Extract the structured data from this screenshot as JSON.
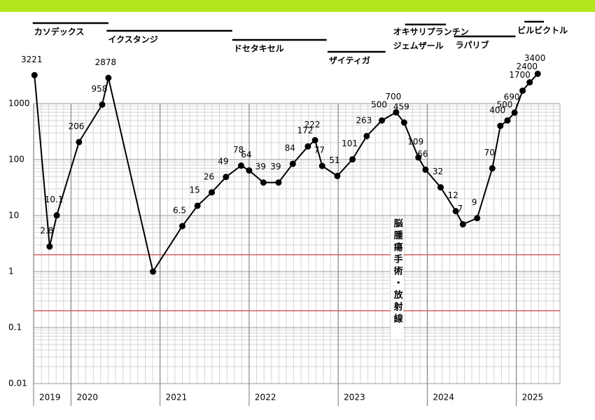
{
  "chart_data": {
    "type": "line",
    "log_scale": true,
    "grid": true,
    "color": "#000000",
    "x": [
      2019.59,
      2019.76,
      2019.84,
      2020.09,
      2020.35,
      2020.42,
      2020.92,
      2021.25,
      2021.42,
      2021.58,
      2021.74,
      2021.91,
      2022.0,
      2022.16,
      2022.33,
      2022.49,
      2022.66,
      2022.74,
      2022.82,
      2022.99,
      2023.16,
      2023.32,
      2023.49,
      2023.65,
      2023.74,
      2023.9,
      2023.98,
      2024.15,
      2024.32,
      2024.4,
      2024.56,
      2024.73,
      2024.82,
      2024.9,
      2024.98,
      2025.07,
      2025.15,
      2025.24
    ],
    "values": [
      3221,
      2.8,
      10.1,
      206,
      958,
      2878,
      1,
      6.5,
      15,
      26,
      49,
      78,
      64,
      39,
      39,
      84,
      172,
      222,
      77,
      51,
      101,
      263,
      500,
      700,
      459,
      109,
      66,
      32,
      12,
      7,
      9,
      70,
      400,
      500,
      690,
      1700,
      2400,
      3400
    ],
    "value_labels": [
      "3221",
      "2.8",
      "10.1",
      "206",
      "958",
      "2878",
      null,
      "6.5",
      "15",
      "26",
      "49",
      "78",
      "64",
      "39",
      "39",
      "84",
      "172",
      "222",
      "77",
      "51",
      "101",
      "263",
      "500",
      "700",
      "459",
      "109",
      "66",
      "32",
      "12",
      "7",
      "9",
      "70",
      "400",
      "500",
      "690",
      "1700",
      "2400",
      "3400"
    ],
    "xlim": [
      2019.58,
      2025.49
    ],
    "xticks": [
      {
        "value": 2019.58,
        "label": "2019"
      },
      2020,
      2021,
      2022,
      2023,
      2024,
      2025
    ],
    "ylim": [
      0.01,
      1000
    ],
    "yticks": [
      1000,
      100,
      10,
      1,
      0.1,
      0.01
    ],
    "reference_lines": [
      2,
      0.2
    ],
    "reference_color": "#d03030",
    "treatments": [
      {
        "label": "カソデックス",
        "start": 2019.57,
        "end": 2020.42
      },
      {
        "label": "イクスタンジ",
        "start": 2020.4,
        "end": 2021.81
      },
      {
        "label": "ドセタキセル",
        "start": 2021.81,
        "end": 2022.87
      },
      {
        "label": "ザイティガ",
        "start": 2022.88,
        "end": 2023.53
      },
      {
        "label": "オキサリプランチン",
        "label2": "ジェムザール",
        "start": 2023.75,
        "end": 2024.21
      },
      {
        "label": "ラパリブ",
        "start": 2024.3,
        "end": 2024.99
      },
      {
        "label": "ビルビクトル",
        "start": 2025.09,
        "end": 2025.31
      }
    ],
    "event": {
      "label": "脳腫瘍手術・放射線",
      "x": 2023.66
    }
  }
}
